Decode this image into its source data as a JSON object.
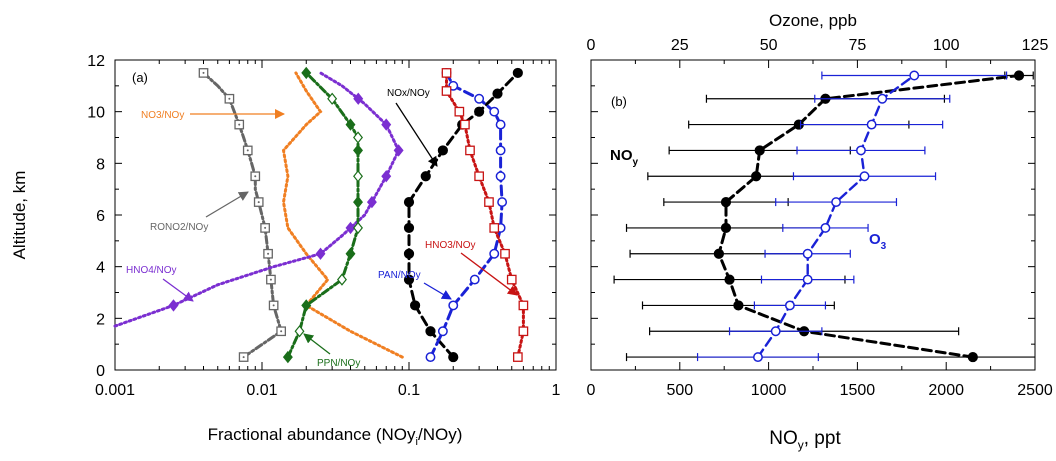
{
  "chart_data": [
    {
      "type": "line",
      "panel_label": "(a)",
      "xlabel_main": "Fractional abundance (NOy",
      "xlabel_sub": "i",
      "xlabel_tail": "/NOy)",
      "ylabel": "Altitude, km",
      "x_scale": "log",
      "xlim": [
        0.001,
        1
      ],
      "ylim": [
        0,
        12
      ],
      "x_ticks": [
        0.001,
        0.01,
        0.1,
        1
      ],
      "x_tick_labels": [
        "0.001",
        "0.01",
        "0.1",
        "1"
      ],
      "y_ticks": [
        0,
        2,
        4,
        6,
        8,
        10,
        12
      ],
      "y_tick_labels": [
        "0",
        "2",
        "4",
        "6",
        "8",
        "10",
        "12"
      ],
      "series": [
        {
          "name": "RONO2/NOy",
          "color": "#666666",
          "line": "dash-dot",
          "marker": "square-dot",
          "x": [
            0.0075,
            0.0135,
            0.012,
            0.0115,
            0.011,
            0.0105,
            0.0095,
            0.009,
            0.009,
            0.0085,
            0.008,
            0.0075,
            0.007,
            0.006,
            0.005,
            0.004
          ],
          "y": [
            0.5,
            1.5,
            2.5,
            3.5,
            4.5,
            5.5,
            6.5,
            7.0,
            7.5,
            8.0,
            8.5,
            9.0,
            9.5,
            10.5,
            11.0,
            11.5
          ],
          "markers_y": [
            0.5,
            1.5,
            2.5,
            3.5,
            4.5,
            5.5,
            6.5,
            7.5,
            8.5,
            9.5,
            10.5,
            11.5
          ]
        },
        {
          "name": "NO3/NOy",
          "color": "#f07f22",
          "line": "dot",
          "x": [
            0.09,
            0.04,
            0.02,
            0.028,
            0.02,
            0.015,
            0.014,
            0.015,
            0.014,
            0.02,
            0.025,
            0.02,
            0.017
          ],
          "y": [
            0.5,
            1.5,
            2.5,
            3.5,
            4.5,
            5.5,
            6.5,
            7.5,
            8.5,
            9.5,
            10.0,
            10.8,
            11.5
          ]
        },
        {
          "name": "HNO4/NOy",
          "color": "#7b2fd1",
          "line": "dot",
          "marker": "diamond-filled",
          "x": [
            0.001,
            0.0025,
            0.005,
            0.012,
            0.025,
            0.035,
            0.05,
            0.07,
            0.085,
            0.07,
            0.05,
            0.035,
            0.025
          ],
          "y": [
            1.7,
            2.5,
            3.3,
            4.0,
            4.5,
            5.2,
            6.0,
            7.5,
            8.5,
            9.5,
            10.3,
            11.0,
            11.5
          ],
          "markers_y": [
            2.5,
            4.5,
            5.5,
            6.5,
            7.5,
            8.5,
            9.5,
            10.5
          ]
        },
        {
          "name": "PPN/NOy",
          "color": "#1a6e1a",
          "line": "dash-dot",
          "marker": "diamond-mixed",
          "x": [
            0.015,
            0.018,
            0.02,
            0.035,
            0.04,
            0.045,
            0.045,
            0.045,
            0.045,
            0.045,
            0.04,
            0.03,
            0.02
          ],
          "y": [
            0.5,
            1.5,
            2.5,
            3.5,
            4.5,
            5.5,
            6.5,
            7.5,
            8.5,
            9.0,
            9.5,
            10.5,
            11.5
          ]
        },
        {
          "name": "NOx/NOy",
          "color": "#000000",
          "line": "dash",
          "marker": "circle-filled",
          "x": [
            0.2,
            0.14,
            0.11,
            0.1,
            0.1,
            0.1,
            0.1,
            0.13,
            0.17,
            0.23,
            0.3,
            0.4,
            0.55
          ],
          "y": [
            0.5,
            1.5,
            2.5,
            3.5,
            4.5,
            5.5,
            6.5,
            7.5,
            8.5,
            9.5,
            10.0,
            10.7,
            11.5
          ]
        },
        {
          "name": "PAN/NOy",
          "color": "#1a22d6",
          "line": "dash",
          "marker": "circle-open",
          "x": [
            0.14,
            0.17,
            0.2,
            0.28,
            0.38,
            0.42,
            0.43,
            0.42,
            0.42,
            0.42,
            0.38,
            0.3,
            0.2,
            0.18
          ],
          "y": [
            0.5,
            1.5,
            2.5,
            3.5,
            4.5,
            5.5,
            6.5,
            7.5,
            8.5,
            9.5,
            10.0,
            10.5,
            11.0,
            11.5
          ]
        },
        {
          "name": "HNO3/NOy",
          "color": "#c81414",
          "line": "dot",
          "marker": "square-open",
          "x": [
            0.55,
            0.6,
            0.6,
            0.5,
            0.45,
            0.38,
            0.35,
            0.3,
            0.26,
            0.24,
            0.22,
            0.18,
            0.18
          ],
          "y": [
            0.5,
            1.5,
            2.5,
            3.5,
            4.5,
            5.5,
            6.5,
            7.5,
            8.5,
            9.5,
            10.0,
            10.8,
            11.5
          ]
        }
      ],
      "annotations": [
        {
          "text": "NO3/NOy",
          "color": "#f07f22",
          "arrow_to": [
            0.027,
            10.2
          ]
        },
        {
          "text": "RONO2/NOy",
          "color": "#666666",
          "arrow_to": [
            0.009,
            7.0
          ]
        },
        {
          "text": "HNO4/NOy",
          "color": "#7b2fd1",
          "arrow_to": [
            0.0035,
            3.3
          ]
        },
        {
          "text": "PPN/NOy",
          "color": "#1a6e1a",
          "arrow_to": [
            0.02,
            2.0
          ]
        },
        {
          "text": "NOx/NOy",
          "color": "#000000",
          "arrow_to": [
            0.15,
            7.8
          ]
        },
        {
          "text": "HNO3/NOy",
          "color": "#c81414",
          "arrow_to": [
            0.45,
            3.0
          ]
        },
        {
          "text": "PAN/NOy",
          "color": "#1a22d6",
          "arrow_to": [
            0.2,
            3.2
          ]
        }
      ]
    },
    {
      "type": "line",
      "panel_label": "(b)",
      "xlabel_main": "NO",
      "xlabel_sub": "y",
      "xlabel_tail": ", ppt",
      "x2label": "Ozone, ppb",
      "xlim": [
        0,
        2500
      ],
      "x2lim": [
        0,
        125
      ],
      "ylim": [
        0,
        12
      ],
      "x_ticks": [
        0,
        500,
        1000,
        1500,
        2000,
        2500
      ],
      "x_tick_labels": [
        "0",
        "500",
        "1000",
        "1500",
        "2000",
        "2500"
      ],
      "x2_ticks": [
        0,
        25,
        50,
        75,
        100,
        125
      ],
      "x2_tick_labels": [
        "0",
        "25",
        "50",
        "75",
        "100",
        "125"
      ],
      "series": [
        {
          "name": "NOy",
          "label_main": "NO",
          "label_sub": "y",
          "color": "#000000",
          "line": "dash",
          "marker": "circle-filled",
          "x": [
            2150,
            1200,
            830,
            780,
            720,
            760,
            760,
            930,
            950,
            1170,
            1320,
            2410
          ],
          "xerr": [
            1950,
            870,
            540,
            650,
            500,
            560,
            350,
            610,
            510,
            620,
            670,
            80
          ],
          "y": [
            0.5,
            1.5,
            2.5,
            3.5,
            4.5,
            5.5,
            6.5,
            7.5,
            8.5,
            9.5,
            10.5,
            11.4
          ]
        },
        {
          "name": "O3",
          "label_main": "O",
          "label_sub": "3",
          "color": "#1a22d6",
          "line": "dash",
          "marker": "circle-open",
          "x": [
            47,
            52,
            56,
            61,
            61,
            66,
            69,
            77,
            76,
            79,
            82,
            91
          ],
          "xerr": [
            17,
            13,
            10,
            13,
            12,
            12,
            17,
            20,
            18,
            20,
            19,
            26
          ],
          "y": [
            0.5,
            1.5,
            2.5,
            3.5,
            4.5,
            5.5,
            6.5,
            7.5,
            8.5,
            9.5,
            10.5,
            11.4
          ],
          "axis": "top"
        }
      ]
    }
  ]
}
